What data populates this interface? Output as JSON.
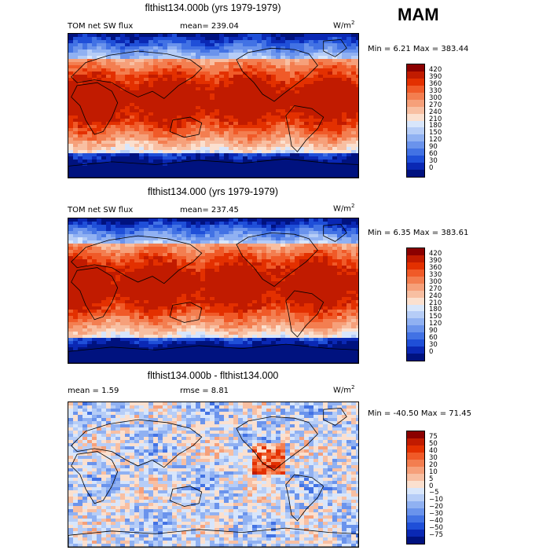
{
  "season": "MAM",
  "units": "W/m",
  "units_sup": "2",
  "panels": [
    {
      "title": "flthist134.000b (yrs 1979-1979)",
      "var_label": "TOM net SW flux",
      "stat_label": "mean= 239.04",
      "minmax": "Min =    6.21 Max = 383.44"
    },
    {
      "title": "flthist134.000 (yrs 1979-1979)",
      "var_label": "TOM net SW flux",
      "stat_label": "mean= 237.45",
      "minmax": "Min =    6.35 Max = 383.61"
    },
    {
      "title": "flthist134.000b - flthist134.000",
      "var_label": "mean =    1.59",
      "stat_label": "rmse =    8.81",
      "minmax": "Min = -40.50 Max =  71.45"
    }
  ],
  "chart_data": [
    {
      "type": "heatmap",
      "title": "flthist134.000b (yrs 1979-1979)",
      "colorbar_levels": [
        "420",
        "390",
        "360",
        "330",
        "300",
        "270",
        "240",
        "210",
        "180",
        "150",
        "120",
        "90",
        "60",
        "30",
        "0"
      ],
      "colorbar_colors": [
        "#8b0000",
        "#c11b00",
        "#e33000",
        "#f05a28",
        "#f37e50",
        "#f6a07a",
        "#f8bfa2",
        "#fbe0cf",
        "#d8e6fb",
        "#b6cdf7",
        "#90b1f2",
        "#6a93ec",
        "#4272e4",
        "#1f4fd8",
        "#0a28b4",
        "#00127f"
      ],
      "stats": {
        "mean": 239.04,
        "min": 6.21,
        "max": 383.44
      }
    },
    {
      "type": "heatmap",
      "title": "flthist134.000 (yrs 1979-1979)",
      "colorbar_levels": [
        "420",
        "390",
        "360",
        "330",
        "300",
        "270",
        "240",
        "210",
        "180",
        "150",
        "120",
        "90",
        "60",
        "30",
        "0"
      ],
      "colorbar_colors": [
        "#8b0000",
        "#c11b00",
        "#e33000",
        "#f05a28",
        "#f37e50",
        "#f6a07a",
        "#f8bfa2",
        "#fbe0cf",
        "#d8e6fb",
        "#b6cdf7",
        "#90b1f2",
        "#6a93ec",
        "#4272e4",
        "#1f4fd8",
        "#0a28b4",
        "#00127f"
      ],
      "stats": {
        "mean": 237.45,
        "min": 6.35,
        "max": 383.61
      }
    },
    {
      "type": "heatmap",
      "title": "flthist134.000b - flthist134.000",
      "colorbar_levels": [
        "75",
        "50",
        "40",
        "30",
        "20",
        "10",
        "5",
        "0",
        "−5",
        "−10",
        "−20",
        "−30",
        "−40",
        "−50",
        "−75"
      ],
      "colorbar_colors": [
        "#8b0000",
        "#c11b00",
        "#e33000",
        "#f05a28",
        "#f37e50",
        "#f6a07a",
        "#f8bfa2",
        "#fbe0cf",
        "#d8e6fb",
        "#b6cdf7",
        "#90b1f2",
        "#6a93ec",
        "#4272e4",
        "#1f4fd8",
        "#0a28b4",
        "#00127f"
      ],
      "stats": {
        "mean": 1.59,
        "rmse": 8.81,
        "min": -40.5,
        "max": 71.45
      }
    }
  ]
}
